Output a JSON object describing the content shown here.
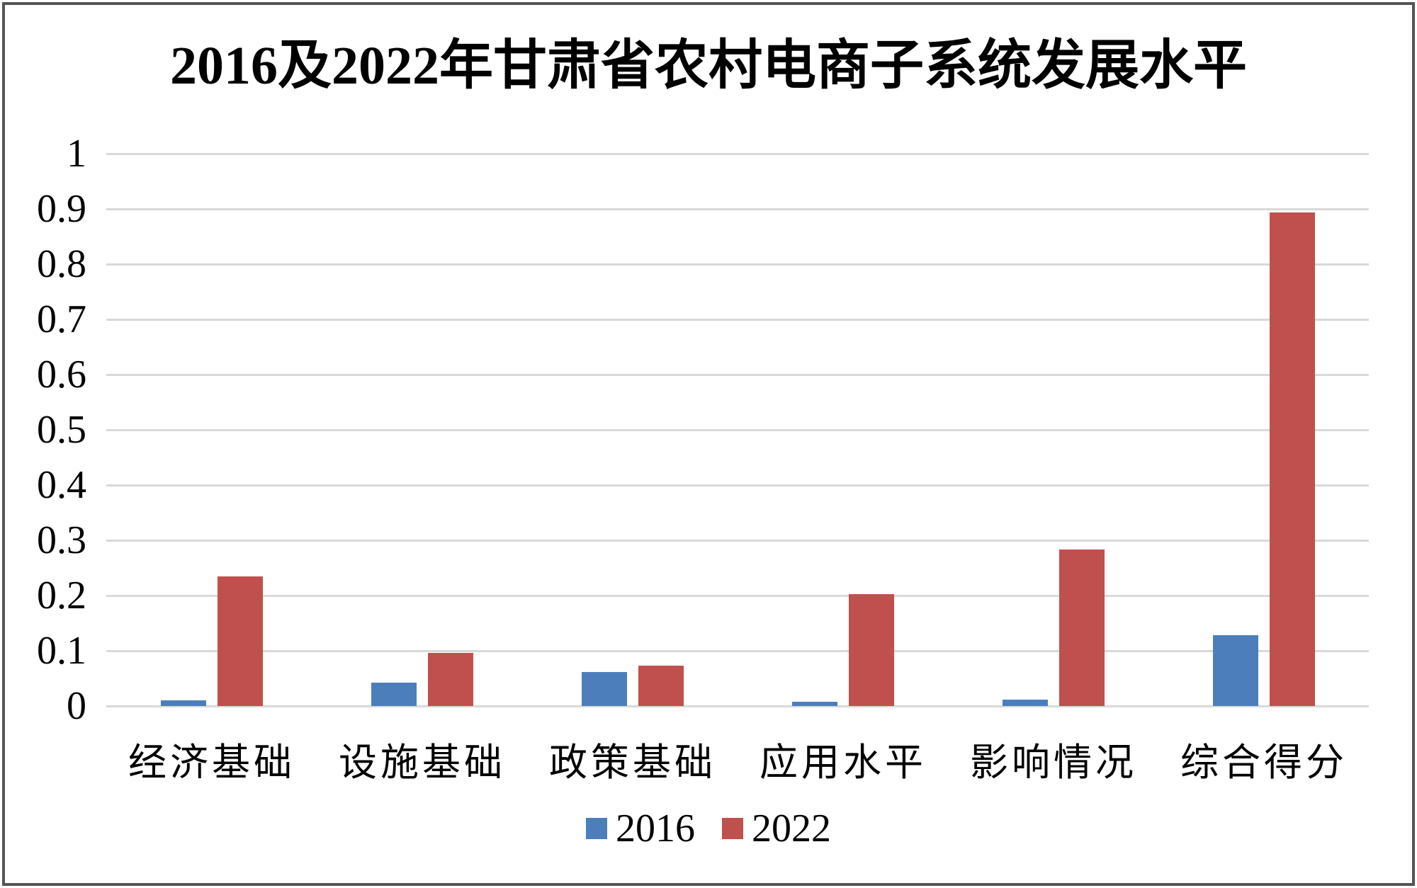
{
  "title": "2016及2022年甘肃省农村电商子系统发展水平",
  "colors": {
    "series_2016": "#4D7EBC",
    "series_2022": "#C0504D",
    "gridline": "#D9D9D9",
    "frame_border": "#555555",
    "background": "#FFFFFF",
    "text": "#000000"
  },
  "chart_data": {
    "type": "bar",
    "title": "2016及2022年甘肃省农村电商子系统发展水平",
    "categories": [
      "经济基础",
      "设施基础",
      "政策基础",
      "应用水平",
      "影响情况",
      "综合得分"
    ],
    "series": [
      {
        "name": "2016",
        "color": "#4D7EBC",
        "values": [
          0.01,
          0.042,
          0.062,
          0.008,
          0.012,
          0.128
        ]
      },
      {
        "name": "2022",
        "color": "#C0504D",
        "values": [
          0.234,
          0.096,
          0.073,
          0.203,
          0.283,
          0.893
        ]
      }
    ],
    "xlabel": "",
    "ylabel": "",
    "ylim": [
      0,
      1
    ],
    "ytick_step": 0.1,
    "ytick_labels": [
      "0",
      "0.1",
      "0.2",
      "0.3",
      "0.4",
      "0.5",
      "0.6",
      "0.7",
      "0.8",
      "0.9",
      "1"
    ],
    "grid": true,
    "legend_position": "bottom"
  }
}
